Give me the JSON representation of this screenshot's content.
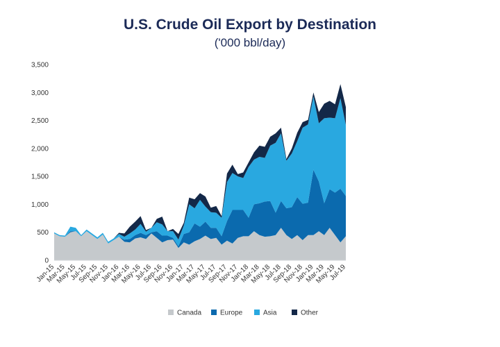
{
  "chart_data": {
    "type": "area",
    "title": "U.S. Crude Oil Export by Destination",
    "subtitle": "('000 bbl/day)",
    "stacked": true,
    "ylim": [
      0,
      3500
    ],
    "yticks": [
      0,
      500,
      1000,
      1500,
      2000,
      2500,
      3000,
      3500
    ],
    "ytick_labels": [
      "0",
      "500",
      "1,000",
      "1,500",
      "2,000",
      "2,500",
      "3,000",
      "3,500"
    ],
    "grid": false,
    "legend_position": "bottom",
    "x": [
      "Jan-15",
      "Feb-15",
      "Mar-15",
      "Apr-15",
      "May-15",
      "Jun-15",
      "Jul-15",
      "Aug-15",
      "Sep-15",
      "Oct-15",
      "Nov-15",
      "Dec-15",
      "Jan-16",
      "Feb-16",
      "Mar-16",
      "Apr-16",
      "May-16",
      "Jun-16",
      "Jul-16",
      "Aug-16",
      "Sep-16",
      "Oct-16",
      "Nov-16",
      "Dec-16",
      "Jan-17",
      "Feb-17",
      "Mar-17",
      "Apr-17",
      "May-17",
      "Jun-17",
      "Jul-17",
      "Aug-17",
      "Sep-17",
      "Oct-17",
      "Nov-17",
      "Dec-17",
      "Jan-18",
      "Feb-18",
      "Mar-18",
      "Apr-18",
      "May-18",
      "Jun-18",
      "Jul-18",
      "Aug-18",
      "Sep-18",
      "Oct-18",
      "Nov-18",
      "Dec-18",
      "Jan-19",
      "Feb-19",
      "Mar-19",
      "Apr-19",
      "May-19",
      "Jun-19",
      "Jul-19"
    ],
    "xtick_labels": [
      "Jan-15",
      "Mar-15",
      "May-15",
      "Jul-15",
      "Sep-15",
      "Nov-15",
      "Jan-16",
      "Mar-16",
      "May-16",
      "Jul-16",
      "Sep-16",
      "Nov-16",
      "Jan-17",
      "Mar-17",
      "May-17",
      "Jul-17",
      "Sep-17",
      "Nov-17",
      "Jan-18",
      "Mar-18",
      "May-18",
      "Jul-18",
      "Sep-18",
      "Nov-18",
      "Jan-19",
      "Mar-19",
      "May-19",
      "Jul-19"
    ],
    "series": [
      {
        "name": "Canada",
        "color": "#c5c9cc",
        "values": [
          480,
          430,
          420,
          500,
          520,
          430,
          520,
          450,
          380,
          460,
          300,
          360,
          420,
          330,
          320,
          390,
          410,
          380,
          480,
          400,
          320,
          360,
          370,
          220,
          320,
          280,
          340,
          380,
          440,
          380,
          400,
          280,
          350,
          300,
          400,
          430,
          430,
          520,
          450,
          420,
          430,
          450,
          580,
          450,
          380,
          450,
          360,
          450,
          450,
          520,
          450,
          580,
          450,
          320,
          430
        ]
      },
      {
        "name": "Europe",
        "color": "#0b6aae",
        "values": [
          0,
          0,
          0,
          20,
          0,
          0,
          0,
          0,
          0,
          0,
          0,
          0,
          0,
          40,
          60,
          60,
          80,
          70,
          20,
          120,
          120,
          80,
          30,
          30,
          150,
          220,
          320,
          220,
          250,
          200,
          180,
          150,
          350,
          600,
          500,
          470,
          330,
          480,
          570,
          630,
          630,
          400,
          480,
          480,
          570,
          680,
          650,
          580,
          1170,
          890,
          570,
          690,
          760,
          960,
          720
        ]
      },
      {
        "name": "Asia",
        "color": "#29a8e0",
        "values": [
          20,
          20,
          20,
          80,
          60,
          20,
          30,
          30,
          30,
          30,
          30,
          30,
          50,
          50,
          100,
          100,
          160,
          60,
          80,
          160,
          200,
          80,
          120,
          120,
          150,
          500,
          270,
          480,
          270,
          280,
          270,
          330,
          700,
          660,
          600,
          570,
          910,
          800,
          830,
          780,
          990,
          1250,
          1210,
          850,
          960,
          1000,
          1360,
          1400,
          1310,
          1040,
          1520,
          1280,
          1330,
          1620,
          1270
        ]
      },
      {
        "name": "Other",
        "color": "#132848",
        "values": [
          0,
          0,
          0,
          0,
          0,
          0,
          0,
          0,
          0,
          0,
          0,
          0,
          20,
          60,
          120,
          140,
          140,
          30,
          0,
          60,
          140,
          0,
          40,
          100,
          50,
          120,
          160,
          120,
          180,
          80,
          120,
          30,
          150,
          150,
          40,
          100,
          80,
          130,
          200,
          200,
          160,
          170,
          100,
          30,
          90,
          150,
          100,
          80,
          70,
          200,
          260,
          300,
          250,
          250,
          320
        ]
      }
    ]
  }
}
